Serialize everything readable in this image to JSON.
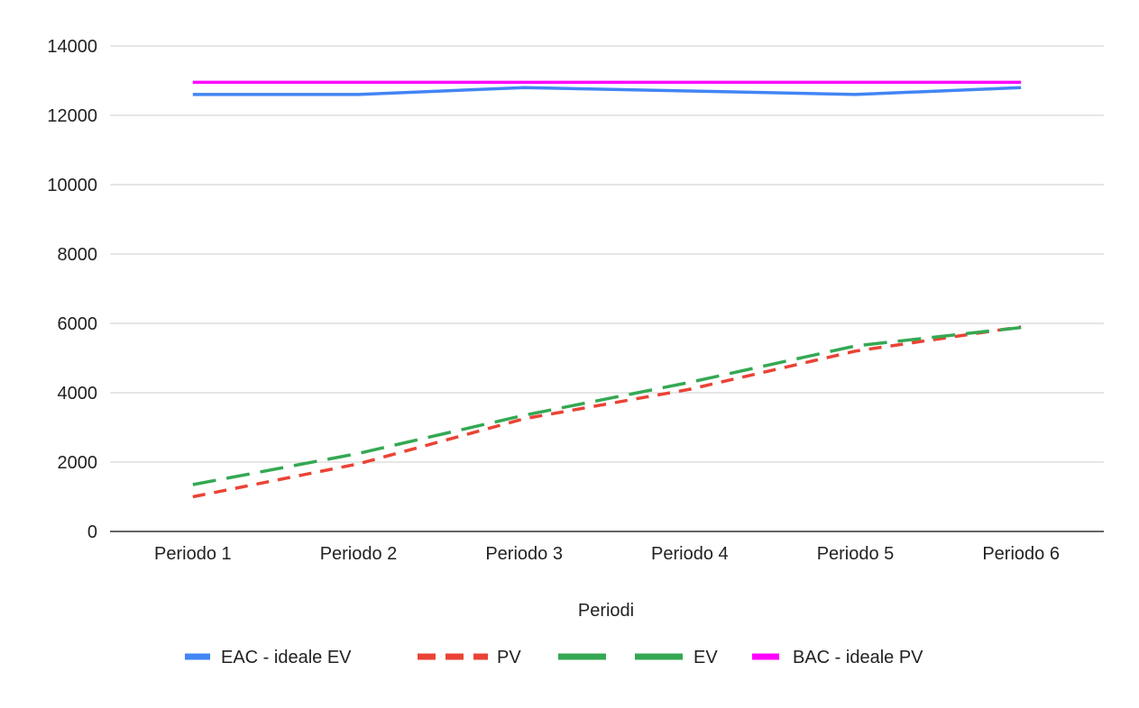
{
  "chart_data": {
    "type": "line",
    "title": "",
    "xlabel": "Periodi",
    "ylabel": "",
    "categories": [
      "Periodo 1",
      "Periodo 2",
      "Periodo 3",
      "Periodo 4",
      "Periodo 5",
      "Periodo 6"
    ],
    "ylim": [
      0,
      14000
    ],
    "yticks": [
      "0",
      "2000",
      "4000",
      "6000",
      "8000",
      "10000",
      "12000",
      "14000"
    ],
    "grid": true,
    "legend_position": "bottom",
    "series": [
      {
        "name": "EAC - ideale EV",
        "values": [
          12600,
          12600,
          12800,
          12700,
          12600,
          12800
        ],
        "color": "#4285f4",
        "dash": "solid"
      },
      {
        "name": "PV",
        "values": [
          1000,
          1950,
          3250,
          4100,
          5200,
          5900
        ],
        "color": "#ea4335",
        "dash": "dashed"
      },
      {
        "name": "EV",
        "values": [
          1350,
          2250,
          3350,
          4300,
          5350,
          5880
        ],
        "color": "#34a853",
        "dash": "long-dashed"
      },
      {
        "name": "BAC - ideale PV",
        "values": [
          12950,
          12950,
          12950,
          12950,
          12950,
          12950
        ],
        "color": "#ff00ff",
        "dash": "solid"
      }
    ]
  }
}
